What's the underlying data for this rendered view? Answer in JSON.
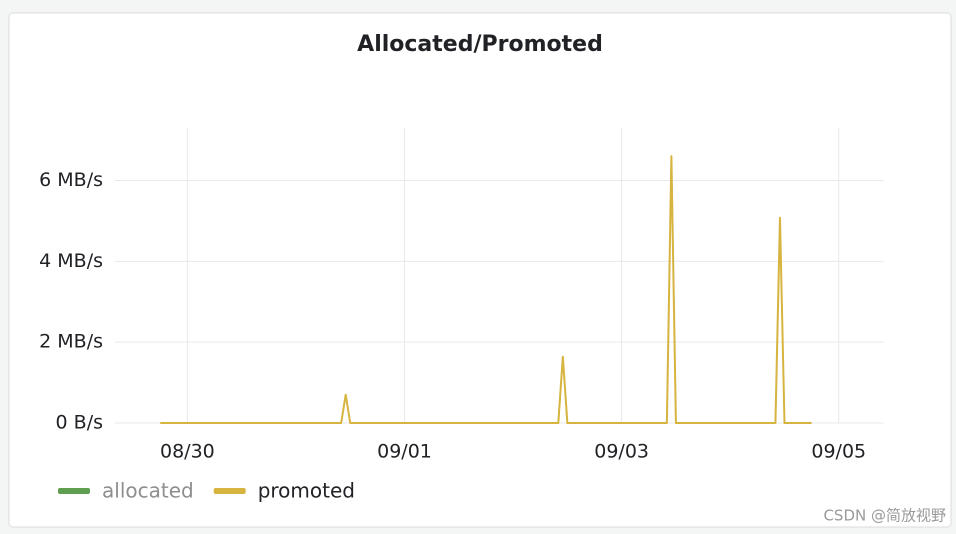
{
  "chart_data": {
    "type": "line",
    "title": "Allocated/Promoted",
    "x": [
      "08/29 18:00",
      "08/31 10:00",
      "08/31 11:00",
      "08/31 12:00",
      "09/02 10:00",
      "09/02 11:00",
      "09/02 12:00",
      "09/03 10:00",
      "09/03 11:00",
      "09/03 12:00",
      "09/04 10:00",
      "09/04 11:00",
      "09/04 12:00",
      "09/04 18:00"
    ],
    "series": [
      {
        "name": "allocated",
        "color": "#5f9f50",
        "values": [
          null,
          null,
          null,
          null,
          null,
          null,
          null,
          null,
          null,
          null,
          null,
          null,
          null,
          null
        ]
      },
      {
        "name": "promoted",
        "color": "#d6b43f",
        "values": [
          0,
          0,
          0.7,
          0,
          0,
          1.64,
          0,
          0,
          6.6,
          0,
          0,
          5.08,
          0,
          0
        ]
      }
    ],
    "xlim": [
      "08/29 08:00",
      "09/05 10:00"
    ],
    "xticks": [
      "08/30",
      "09/01",
      "09/03",
      "09/05"
    ],
    "ylim": [
      0,
      7.3
    ],
    "yticks": [
      {
        "value": 0,
        "label": "0 B/s"
      },
      {
        "value": 2,
        "label": "2 MB/s"
      },
      {
        "value": 4,
        "label": "4 MB/s"
      },
      {
        "value": 6,
        "label": "6 MB/s"
      }
    ],
    "grid": true,
    "legend": "bottom-left"
  },
  "watermark": "CSDN @简放视野"
}
